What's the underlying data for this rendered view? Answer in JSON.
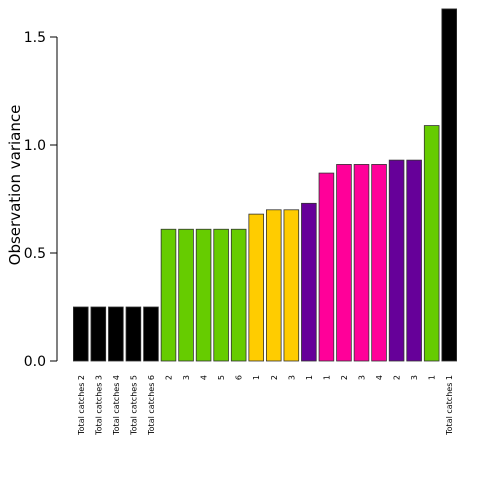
{
  "chart_data": {
    "type": "bar",
    "title": "",
    "xlabel": "",
    "ylabel": "Observation variance",
    "ylim": [
      0,
      1.5
    ],
    "yticks": [
      "0.0",
      "0.5",
      "1.0",
      "1.5"
    ],
    "grid": false,
    "legend": "none",
    "bars": [
      {
        "label": "Total catches 2",
        "value": 0.25,
        "color": "#000000"
      },
      {
        "label": "Total catches 3",
        "value": 0.25,
        "color": "#000000"
      },
      {
        "label": "Total catches 4",
        "value": 0.25,
        "color": "#000000"
      },
      {
        "label": "Total catches 5",
        "value": 0.25,
        "color": "#000000"
      },
      {
        "label": "Total catches 6",
        "value": 0.25,
        "color": "#000000"
      },
      {
        "label": "2",
        "value": 0.61,
        "color": "#66CC00"
      },
      {
        "label": "3",
        "value": 0.61,
        "color": "#66CC00"
      },
      {
        "label": "4",
        "value": 0.61,
        "color": "#66CC00"
      },
      {
        "label": "5",
        "value": 0.61,
        "color": "#66CC00"
      },
      {
        "label": "6",
        "value": 0.61,
        "color": "#66CC00"
      },
      {
        "label": "1",
        "value": 0.68,
        "color": "#FFCC00"
      },
      {
        "label": "2",
        "value": 0.7,
        "color": "#FFCC00"
      },
      {
        "label": "3",
        "value": 0.7,
        "color": "#FFCC00"
      },
      {
        "label": "1",
        "value": 0.73,
        "color": "#660099"
      },
      {
        "label": "1",
        "value": 0.87,
        "color": "#FF0099"
      },
      {
        "label": "2",
        "value": 0.91,
        "color": "#FF0099"
      },
      {
        "label": "3",
        "value": 0.91,
        "color": "#FF0099"
      },
      {
        "label": "4",
        "value": 0.91,
        "color": "#FF0099"
      },
      {
        "label": "2",
        "value": 0.93,
        "color": "#660099"
      },
      {
        "label": "3",
        "value": 0.93,
        "color": "#660099"
      },
      {
        "label": "1",
        "value": 1.09,
        "color": "#66CC00"
      },
      {
        "label": "Total catches 1",
        "value": 1.63,
        "color": "#000000"
      }
    ]
  }
}
